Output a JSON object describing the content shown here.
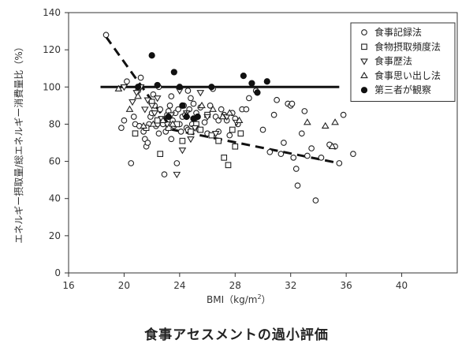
{
  "chart_data": {
    "type": "scatter",
    "caption": "食事アセスメントの過小評価",
    "xlabel": "BMI（kg/m²）",
    "xlabel_main": "BMI（kg/m",
    "xlabel_sup": "2",
    "xlabel_end": "）",
    "ylabel": "エネルギー摂取量/総エネルギー消費量比（%）",
    "xlim": [
      16,
      44
    ],
    "ylim": [
      0,
      140
    ],
    "x_ticks": [
      "16",
      "20",
      "24",
      "28",
      "32",
      "36",
      "40"
    ],
    "y_ticks": [
      "0",
      "20",
      "40",
      "60",
      "80",
      "100",
      "120",
      "140"
    ],
    "legend_position": "top-right",
    "grid": false,
    "series": [
      {
        "name": "食事記録法",
        "marker": "circle-open",
        "points": [
          [
            18.7,
            128
          ],
          [
            19.8,
            78
          ],
          [
            20.0,
            82
          ],
          [
            20.2,
            103
          ],
          [
            20.5,
            59
          ],
          [
            20.7,
            84
          ],
          [
            20.8,
            80
          ],
          [
            21.0,
            98
          ],
          [
            21.1,
            79
          ],
          [
            21.2,
            105
          ],
          [
            21.4,
            76
          ],
          [
            21.5,
            72
          ],
          [
            21.6,
            68
          ],
          [
            21.7,
            70
          ],
          [
            21.8,
            80
          ],
          [
            21.9,
            84
          ],
          [
            22.0,
            86
          ],
          [
            22.1,
            96
          ],
          [
            22.2,
            90
          ],
          [
            22.3,
            79
          ],
          [
            22.4,
            80
          ],
          [
            22.5,
            75
          ],
          [
            22.6,
            88
          ],
          [
            22.7,
            82
          ],
          [
            22.8,
            80
          ],
          [
            22.9,
            53
          ],
          [
            23.0,
            76
          ],
          [
            23.1,
            85
          ],
          [
            23.2,
            87
          ],
          [
            23.3,
            90
          ],
          [
            23.4,
            72
          ],
          [
            23.5,
            82
          ],
          [
            23.6,
            79
          ],
          [
            23.7,
            86
          ],
          [
            23.8,
            59
          ],
          [
            23.9,
            88
          ],
          [
            24.0,
            80
          ],
          [
            24.1,
            76
          ],
          [
            24.2,
            84
          ],
          [
            24.3,
            90
          ],
          [
            24.4,
            85
          ],
          [
            24.5,
            78
          ],
          [
            24.6,
            77
          ],
          [
            24.7,
            88
          ],
          [
            24.8,
            94
          ],
          [
            24.9,
            80
          ],
          [
            25.0,
            91
          ],
          [
            25.2,
            86
          ],
          [
            25.4,
            77
          ],
          [
            25.5,
            89
          ],
          [
            25.8,
            81
          ],
          [
            26.0,
            75
          ],
          [
            26.2,
            90
          ],
          [
            26.4,
            99
          ],
          [
            26.6,
            84
          ],
          [
            26.8,
            76
          ],
          [
            27.0,
            88
          ],
          [
            27.2,
            85
          ],
          [
            27.4,
            82
          ],
          [
            27.6,
            74
          ],
          [
            27.8,
            86
          ],
          [
            28.0,
            83
          ],
          [
            28.2,
            80
          ],
          [
            28.5,
            88
          ],
          [
            29.0,
            94
          ],
          [
            29.5,
            98
          ],
          [
            30.0,
            77
          ],
          [
            30.5,
            65
          ],
          [
            31.0,
            93
          ],
          [
            31.5,
            70
          ],
          [
            31.8,
            91
          ],
          [
            32.0,
            90
          ],
          [
            32.2,
            62
          ],
          [
            32.4,
            56
          ],
          [
            32.5,
            47
          ],
          [
            32.8,
            75
          ],
          [
            33.0,
            87
          ],
          [
            33.2,
            63
          ],
          [
            33.5,
            67
          ],
          [
            33.8,
            39
          ],
          [
            34.2,
            62
          ],
          [
            34.8,
            69
          ],
          [
            35.5,
            59
          ],
          [
            36.5,
            64
          ],
          [
            35.8,
            85
          ],
          [
            35.2,
            68
          ],
          [
            32.1,
            91
          ],
          [
            30.8,
            85
          ],
          [
            31.3,
            64
          ],
          [
            28.8,
            88
          ],
          [
            26.8,
            82
          ],
          [
            25.1,
            83
          ],
          [
            23.4,
            95
          ],
          [
            22.5,
            100
          ],
          [
            24.6,
            98
          ]
        ]
      },
      {
        "name": "食物摂取頻度法",
        "marker": "square-open",
        "points": [
          [
            20.8,
            75
          ],
          [
            21.6,
            78
          ],
          [
            22.0,
            92
          ],
          [
            22.4,
            82
          ],
          [
            22.6,
            64
          ],
          [
            23.2,
            78
          ],
          [
            23.8,
            80
          ],
          [
            24.2,
            71
          ],
          [
            25.2,
            80
          ],
          [
            25.5,
            77
          ],
          [
            26.3,
            74
          ],
          [
            26.8,
            71
          ],
          [
            27.2,
            62
          ],
          [
            27.5,
            58
          ],
          [
            27.8,
            77
          ],
          [
            28.0,
            68
          ],
          [
            28.4,
            75
          ],
          [
            26.0,
            85
          ],
          [
            24.8,
            76
          ]
        ]
      },
      {
        "name": "食事歴法",
        "marker": "triangle-down-open",
        "points": [
          [
            20.0,
            100
          ],
          [
            20.6,
            92
          ],
          [
            20.9,
            97
          ],
          [
            21.2,
            100
          ],
          [
            21.7,
            93
          ],
          [
            22.0,
            90
          ],
          [
            22.4,
            94
          ],
          [
            22.7,
            83
          ],
          [
            23.1,
            80
          ],
          [
            23.4,
            85
          ],
          [
            23.8,
            53
          ],
          [
            24.2,
            66
          ],
          [
            24.5,
            86
          ],
          [
            24.8,
            72
          ],
          [
            25.1,
            78
          ],
          [
            25.5,
            97
          ],
          [
            26.0,
            84
          ],
          [
            26.6,
            75
          ],
          [
            27.4,
            84
          ],
          [
            28.1,
            81
          ],
          [
            22.2,
            86
          ],
          [
            24.0,
            98
          ],
          [
            21.5,
            88
          ]
        ]
      },
      {
        "name": "食事思い出し法",
        "marker": "triangle-up-open",
        "points": [
          [
            19.6,
            99
          ],
          [
            20.4,
            88
          ],
          [
            21.0,
            95
          ],
          [
            21.4,
            79
          ],
          [
            22.1,
            80
          ],
          [
            22.8,
            82
          ],
          [
            23.5,
            80
          ],
          [
            24.5,
            85
          ],
          [
            25.6,
            90
          ],
          [
            26.4,
            88
          ],
          [
            27.1,
            84
          ],
          [
            27.6,
            86
          ],
          [
            28.3,
            82
          ],
          [
            33.2,
            81
          ],
          [
            34.5,
            79
          ],
          [
            35.0,
            68
          ],
          [
            35.2,
            81
          ]
        ]
      },
      {
        "name": "第三者が観察",
        "marker": "circle-filled",
        "points": [
          [
            21.0,
            100
          ],
          [
            22.0,
            117
          ],
          [
            22.4,
            101
          ],
          [
            23.2,
            84
          ],
          [
            23.6,
            108
          ],
          [
            24.0,
            100
          ],
          [
            24.5,
            84
          ],
          [
            25.3,
            84
          ],
          [
            26.3,
            100
          ],
          [
            28.6,
            106
          ],
          [
            29.2,
            102
          ],
          [
            29.6,
            97
          ],
          [
            30.3,
            103
          ],
          [
            24.2,
            90
          ],
          [
            25.0,
            83
          ]
        ]
      }
    ],
    "reference_lines": [
      {
        "style": "solid",
        "x": [
          18.3,
          35.5
        ],
        "y": [
          100,
          100
        ]
      },
      {
        "style": "dashed",
        "x": [
          18.7,
          23.5,
          35.5
        ],
        "y": [
          127,
          77,
          59
        ]
      }
    ]
  }
}
